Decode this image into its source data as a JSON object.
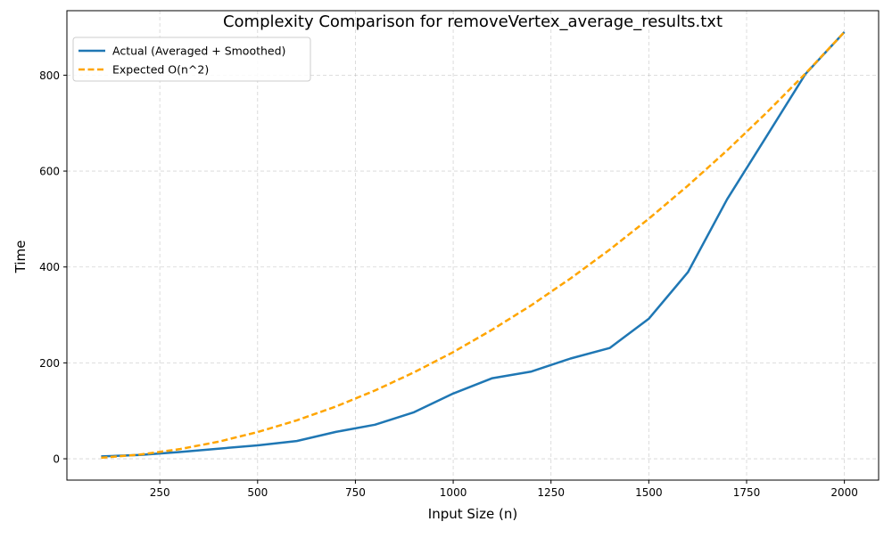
{
  "chart_data": {
    "type": "line",
    "title": "Complexity Comparison for removeVertex_average_results.txt",
    "xlabel": "Input Size (n)",
    "ylabel": "Time",
    "xlim": [
      12.5,
      2087.5
    ],
    "ylim": [
      -44.5,
      934.5
    ],
    "x_ticks": [
      250,
      500,
      750,
      1000,
      1250,
      1500,
      1750,
      2000
    ],
    "y_ticks": [
      0,
      200,
      400,
      600,
      800
    ],
    "grid": true,
    "legend_position": "top-left",
    "series": [
      {
        "name": "Actual (Averaged + Smoothed)",
        "color": "#1f77b4",
        "style": "solid",
        "x": [
          100,
          200,
          300,
          400,
          500,
          600,
          700,
          800,
          900,
          1000,
          1100,
          1200,
          1300,
          1400,
          1500,
          1600,
          1700,
          1800,
          1900,
          2000
        ],
        "y": [
          5,
          8,
          14,
          21,
          28,
          37,
          56,
          71,
          97,
          136,
          168,
          182,
          209,
          231,
          292,
          389,
          541,
          671,
          802,
          890
        ]
      },
      {
        "name": "Expected O(n^2)",
        "color": "#ffa500",
        "style": "dashed",
        "x": [
          100,
          200,
          300,
          400,
          500,
          600,
          700,
          800,
          900,
          1000,
          1100,
          1200,
          1300,
          1400,
          1500,
          1600,
          1700,
          1800,
          1900,
          2000
        ],
        "y": [
          2.2,
          8.9,
          20,
          35.6,
          55.6,
          80.1,
          109,
          142.4,
          180.2,
          222.5,
          269.2,
          320.4,
          376,
          436.1,
          500.6,
          569.6,
          643,
          720.9,
          803.2,
          890
        ]
      }
    ]
  }
}
